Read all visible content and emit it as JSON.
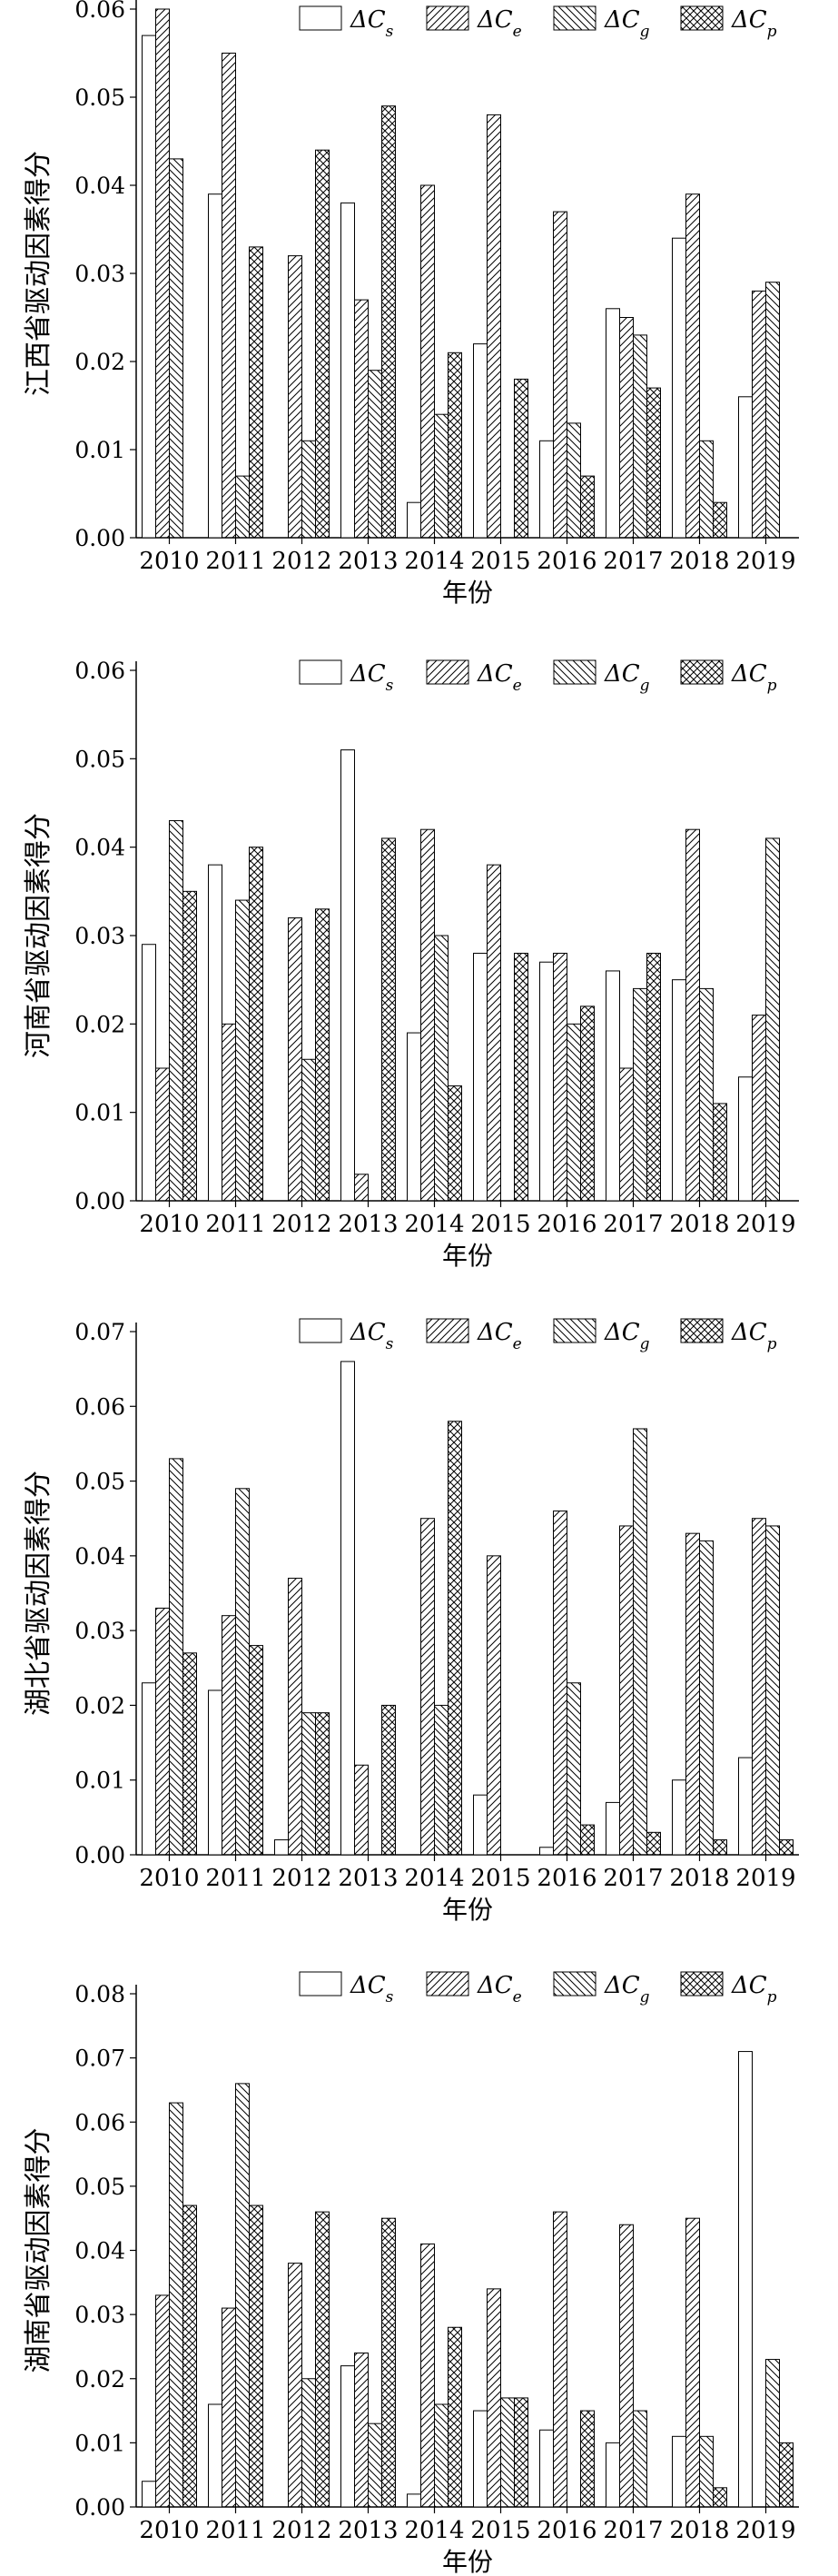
{
  "chart_data": [
    {
      "type": "bar",
      "ylabel": "江西省驱动因素得分",
      "xlabel": "年份",
      "categories": [
        "2010",
        "2011",
        "2012",
        "2013",
        "2014",
        "2015",
        "2016",
        "2017",
        "2018",
        "2019"
      ],
      "ylim": [
        0,
        0.06
      ],
      "yticks": [
        "0.00",
        "0.01",
        "0.02",
        "0.03",
        "0.04",
        "0.05",
        "0.06"
      ],
      "legend_position": "top-right",
      "series": [
        {
          "name": "ΔCs",
          "values": [
            0.057,
            0.039,
            0.0,
            0.038,
            0.004,
            0.022,
            0.011,
            0.026,
            0.034,
            0.016
          ]
        },
        {
          "name": "ΔCe",
          "values": [
            0.06,
            0.055,
            0.032,
            0.027,
            0.04,
            0.048,
            0.037,
            0.025,
            0.039,
            0.028
          ]
        },
        {
          "name": "ΔCg",
          "values": [
            0.043,
            0.007,
            0.011,
            0.019,
            0.014,
            0.0,
            0.013,
            0.023,
            0.011,
            0.029
          ]
        },
        {
          "name": "ΔCp",
          "values": [
            0.0,
            0.033,
            0.044,
            0.049,
            0.021,
            0.018,
            0.007,
            0.017,
            0.004,
            0.0
          ]
        }
      ]
    },
    {
      "type": "bar",
      "ylabel": "河南省驱动因素得分",
      "xlabel": "年份",
      "categories": [
        "2010",
        "2011",
        "2012",
        "2013",
        "2014",
        "2015",
        "2016",
        "2017",
        "2018",
        "2019"
      ],
      "ylim": [
        0,
        0.06
      ],
      "yticks": [
        "0.00",
        "0.01",
        "0.02",
        "0.03",
        "0.04",
        "0.05",
        "0.06"
      ],
      "legend_position": "top-right",
      "series": [
        {
          "name": "ΔCs",
          "values": [
            0.029,
            0.038,
            0.0,
            0.051,
            0.019,
            0.028,
            0.027,
            0.026,
            0.025,
            0.014
          ]
        },
        {
          "name": "ΔCe",
          "values": [
            0.015,
            0.02,
            0.032,
            0.003,
            0.042,
            0.038,
            0.028,
            0.015,
            0.042,
            0.021
          ]
        },
        {
          "name": "ΔCg",
          "values": [
            0.043,
            0.034,
            0.016,
            0.0,
            0.03,
            0.0,
            0.02,
            0.024,
            0.024,
            0.041
          ]
        },
        {
          "name": "ΔCp",
          "values": [
            0.035,
            0.04,
            0.033,
            0.041,
            0.013,
            0.028,
            0.022,
            0.028,
            0.011,
            0.0
          ]
        }
      ]
    },
    {
      "type": "bar",
      "ylabel": "湖北省驱动因素得分",
      "xlabel": "年份",
      "categories": [
        "2010",
        "2011",
        "2012",
        "2013",
        "2014",
        "2015",
        "2016",
        "2017",
        "2018",
        "2019"
      ],
      "ylim": [
        0,
        0.07
      ],
      "yticks": [
        "0.00",
        "0.01",
        "0.02",
        "0.03",
        "0.04",
        "0.05",
        "0.06",
        "0.07"
      ],
      "legend_position": "top-right",
      "series": [
        {
          "name": "ΔCs",
          "values": [
            0.023,
            0.022,
            0.002,
            0.066,
            0.0,
            0.008,
            0.001,
            0.007,
            0.01,
            0.013
          ]
        },
        {
          "name": "ΔCe",
          "values": [
            0.033,
            0.032,
            0.037,
            0.012,
            0.045,
            0.04,
            0.046,
            0.044,
            0.043,
            0.045
          ]
        },
        {
          "name": "ΔCg",
          "values": [
            0.053,
            0.049,
            0.019,
            0.0,
            0.02,
            0.0,
            0.023,
            0.057,
            0.042,
            0.044
          ]
        },
        {
          "name": "ΔCp",
          "values": [
            0.027,
            0.028,
            0.019,
            0.02,
            0.058,
            0.0,
            0.004,
            0.003,
            0.002,
            0.002
          ]
        }
      ]
    },
    {
      "type": "bar",
      "ylabel": "湖南省驱动因素得分",
      "xlabel": "年份",
      "categories": [
        "2010",
        "2011",
        "2012",
        "2013",
        "2014",
        "2015",
        "2016",
        "2017",
        "2018",
        "2019"
      ],
      "ylim": [
        0,
        0.08
      ],
      "yticks": [
        "0.00",
        "0.01",
        "0.02",
        "0.03",
        "0.04",
        "0.05",
        "0.06",
        "0.07",
        "0.08"
      ],
      "legend_position": "top-right",
      "series": [
        {
          "name": "ΔCs",
          "values": [
            0.004,
            0.016,
            0.0,
            0.022,
            0.002,
            0.015,
            0.012,
            0.01,
            0.011,
            0.071
          ]
        },
        {
          "name": "ΔCe",
          "values": [
            0.033,
            0.031,
            0.038,
            0.024,
            0.041,
            0.034,
            0.046,
            0.044,
            0.045,
            0.0
          ]
        },
        {
          "name": "ΔCg",
          "values": [
            0.063,
            0.066,
            0.02,
            0.013,
            0.016,
            0.017,
            0.0,
            0.015,
            0.011,
            0.023
          ]
        },
        {
          "name": "ΔCp",
          "values": [
            0.047,
            0.047,
            0.046,
            0.045,
            0.028,
            0.017,
            0.015,
            0.0,
            0.003,
            0.01
          ]
        }
      ]
    }
  ]
}
